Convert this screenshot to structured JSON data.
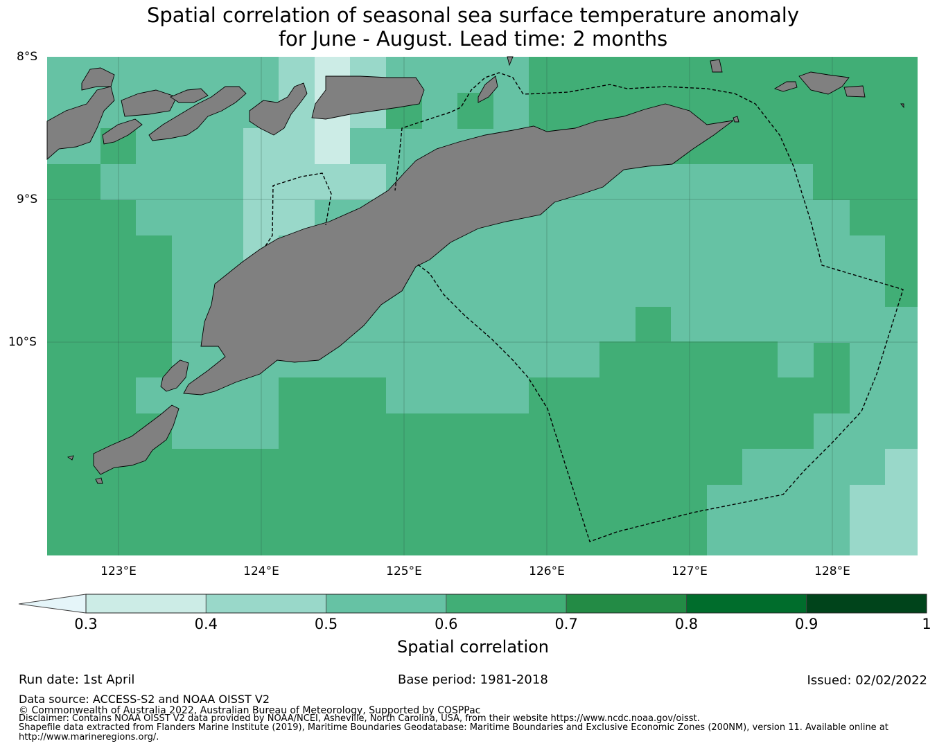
{
  "title": {
    "line1": "Spatial correlation of seasonal sea surface temperature anomaly",
    "line2": "for June - August. Lead time: 2 months"
  },
  "map": {
    "lat_labels": [
      "8°S",
      "9°S",
      "10°S"
    ],
    "lon_labels": [
      "123°E",
      "124°E",
      "125°E",
      "126°E",
      "127°E",
      "128°E"
    ],
    "land_color": "#808080",
    "boundary_style": "dashed"
  },
  "colorbar": {
    "title": "Spatial correlation",
    "ticks": [
      "0.3",
      "0.4",
      "0.5",
      "0.6",
      "0.7",
      "0.8",
      "0.9",
      "1"
    ],
    "under_color": "#e5f5f9",
    "colors": [
      "#ccece6",
      "#99d8c9",
      "#66c2a4",
      "#41ae76",
      "#238b45",
      "#006d2c",
      "#00441b"
    ]
  },
  "footer": {
    "run_date": "Run date: 1st April",
    "base_period": "Base period: 1981-2018",
    "issued": "Issued: 02/02/2022",
    "data_source": "Data source: ACCESS-S2 and NOAA OISST V2",
    "copyright": "© Commonwealth of Australia 2022, Australian Bureau of Meteorology, Supported by COSPPac",
    "disclaimer": "Disclaimer: Contains NOAA OISST V2 data provided by NOAA/NCEI, Asheville, North Carolina, USA, from their website https://www.ncdc.noaa.gov/oisst.",
    "shapefile_line1": "Shapefile data extracted from Flanders Marine Institute (2019), Maritime Boundaries Geodatabase: Maritime Boundaries and Exclusive Economic Zones (200NM), version 11. Available online at",
    "shapefile_line2": "http://www.marineregions.org/."
  }
}
